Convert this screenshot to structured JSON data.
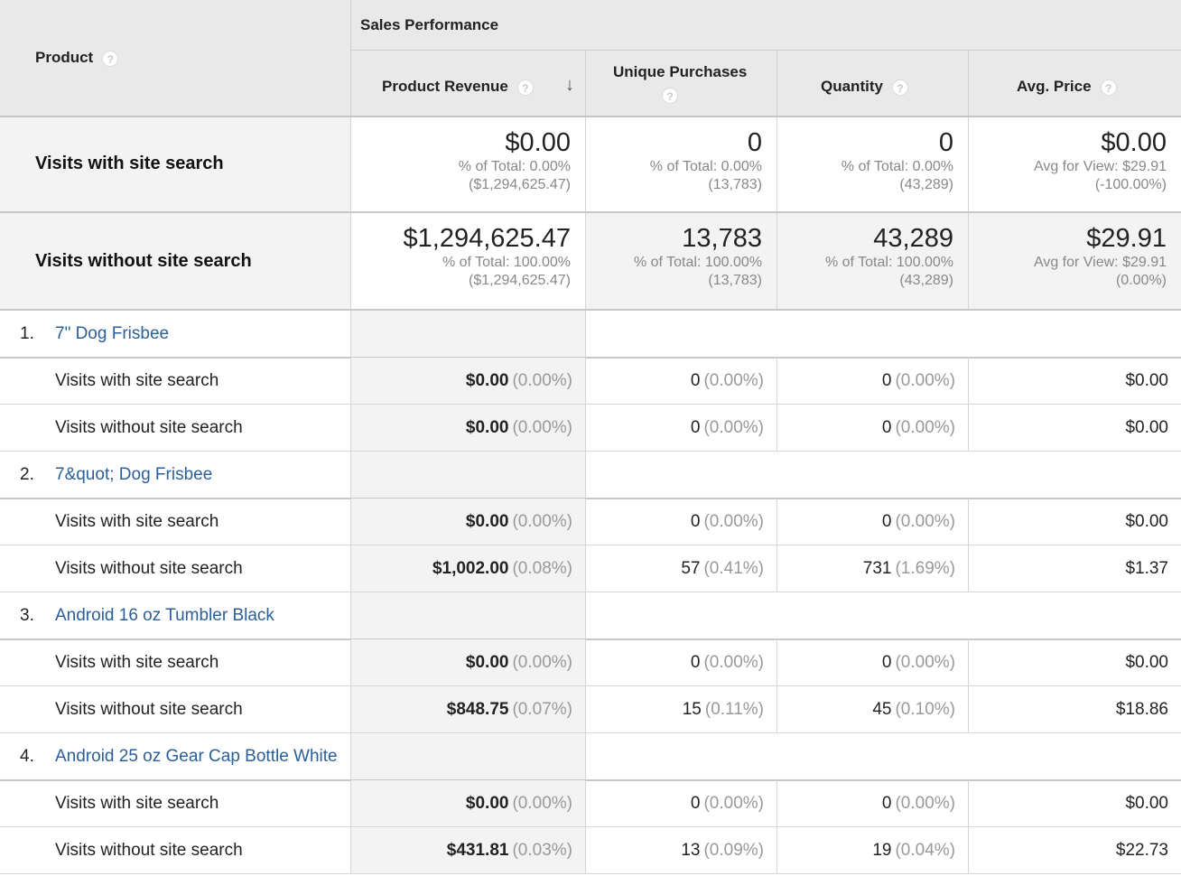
{
  "header": {
    "product_label": "Product",
    "group_label": "Sales Performance",
    "help_glyph": "?",
    "sort_glyph": "↓",
    "metrics": [
      {
        "label": "Product Revenue"
      },
      {
        "label": "Unique Purchases"
      },
      {
        "label": "Quantity"
      },
      {
        "label": "Avg. Price"
      }
    ]
  },
  "summary": [
    {
      "label": "Visits with site search",
      "cells": [
        {
          "value": "$0.00",
          "sub1": "% of Total: 0.00%",
          "sub2": "($1,294,625.47)"
        },
        {
          "value": "0",
          "sub1": "% of Total: 0.00%",
          "sub2": "(13,783)"
        },
        {
          "value": "0",
          "sub1": "% of Total: 0.00%",
          "sub2": "(43,289)"
        },
        {
          "value": "$0.00",
          "sub1": "Avg for View: $29.91",
          "sub2": "(-100.00%)"
        }
      ]
    },
    {
      "label": "Visits without site search",
      "cells": [
        {
          "value": "$1,294,625.47",
          "sub1": "% of Total: 100.00%",
          "sub2": "($1,294,625.47)"
        },
        {
          "value": "13,783",
          "sub1": "% of Total: 100.00%",
          "sub2": "(13,783)"
        },
        {
          "value": "43,289",
          "sub1": "% of Total: 100.00%",
          "sub2": "(43,289)"
        },
        {
          "value": "$29.91",
          "sub1": "Avg for View: $29.91",
          "sub2": "(0.00%)"
        }
      ]
    }
  ],
  "products": [
    {
      "num": "1.",
      "name": "7\" Dog Frisbee",
      "rows": [
        {
          "label": "Visits with site search",
          "revenue": "$0.00",
          "revenue_pct": "(0.00%)",
          "purchases": "0",
          "purchases_pct": "(0.00%)",
          "quantity": "0",
          "quantity_pct": "(0.00%)",
          "avg_price": "$0.00"
        },
        {
          "label": "Visits without site search",
          "revenue": "$0.00",
          "revenue_pct": "(0.00%)",
          "purchases": "0",
          "purchases_pct": "(0.00%)",
          "quantity": "0",
          "quantity_pct": "(0.00%)",
          "avg_price": "$0.00"
        }
      ]
    },
    {
      "num": "2.",
      "name": "7&quot; Dog Frisbee",
      "rows": [
        {
          "label": "Visits with site search",
          "revenue": "$0.00",
          "revenue_pct": "(0.00%)",
          "purchases": "0",
          "purchases_pct": "(0.00%)",
          "quantity": "0",
          "quantity_pct": "(0.00%)",
          "avg_price": "$0.00"
        },
        {
          "label": "Visits without site search",
          "revenue": "$1,002.00",
          "revenue_pct": "(0.08%)",
          "purchases": "57",
          "purchases_pct": "(0.41%)",
          "quantity": "731",
          "quantity_pct": "(1.69%)",
          "avg_price": "$1.37"
        }
      ]
    },
    {
      "num": "3.",
      "name": "Android 16 oz Tumbler Black",
      "rows": [
        {
          "label": "Visits with site search",
          "revenue": "$0.00",
          "revenue_pct": "(0.00%)",
          "purchases": "0",
          "purchases_pct": "(0.00%)",
          "quantity": "0",
          "quantity_pct": "(0.00%)",
          "avg_price": "$0.00"
        },
        {
          "label": "Visits without site search",
          "revenue": "$848.75",
          "revenue_pct": "(0.07%)",
          "purchases": "15",
          "purchases_pct": "(0.11%)",
          "quantity": "45",
          "quantity_pct": "(0.10%)",
          "avg_price": "$18.86"
        }
      ]
    },
    {
      "num": "4.",
      "name": "Android 25 oz Gear Cap Bottle White",
      "rows": [
        {
          "label": "Visits with site search",
          "revenue": "$0.00",
          "revenue_pct": "(0.00%)",
          "purchases": "0",
          "purchases_pct": "(0.00%)",
          "quantity": "0",
          "quantity_pct": "(0.00%)",
          "avg_price": "$0.00"
        },
        {
          "label": "Visits without site search",
          "revenue": "$431.81",
          "revenue_pct": "(0.03%)",
          "purchases": "13",
          "purchases_pct": "(0.09%)",
          "quantity": "19",
          "quantity_pct": "(0.04%)",
          "avg_price": "$22.73"
        }
      ]
    }
  ]
}
